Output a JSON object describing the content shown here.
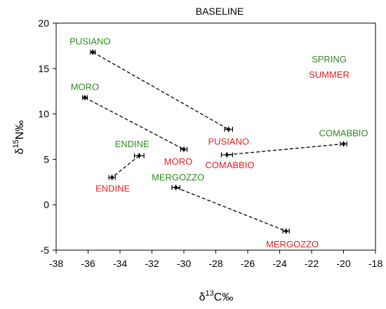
{
  "chart_data": {
    "type": "scatter",
    "title": "BASELINE",
    "xlabel": {
      "pre": "δ",
      "sup": "13",
      "post": "C‰"
    },
    "ylabel": {
      "pre": "δ",
      "sup": "15",
      "post": "N‰"
    },
    "xlim": [
      -38,
      -18
    ],
    "ylim": [
      -5,
      20
    ],
    "xticks": [
      -38,
      -36,
      -34,
      -32,
      -30,
      -28,
      -26,
      -24,
      -22,
      -20,
      -18
    ],
    "yticks": [
      -5,
      0,
      5,
      10,
      15,
      20
    ],
    "grid": false,
    "legend_position": "top-right",
    "series": [
      {
        "name": "SPRING",
        "color": "#2e8b1e"
      },
      {
        "name": "SUMMER",
        "color": "#e8201c"
      }
    ],
    "points": [
      {
        "lake": "PUSIANO",
        "season": "SPRING",
        "x": -35.7,
        "y": 16.8,
        "xerr": 0.15
      },
      {
        "lake": "PUSIANO",
        "season": "SUMMER",
        "x": -27.2,
        "y": 8.3,
        "xerr": 0.25
      },
      {
        "lake": "MORO",
        "season": "SPRING",
        "x": -36.2,
        "y": 11.8,
        "xerr": 0.15
      },
      {
        "lake": "MORO",
        "season": "SUMMER",
        "x": -30.0,
        "y": 6.1,
        "xerr": 0.2
      },
      {
        "lake": "ENDINE",
        "season": "SPRING",
        "x": -32.8,
        "y": 5.4,
        "xerr": 0.3
      },
      {
        "lake": "ENDINE",
        "season": "SUMMER",
        "x": -34.5,
        "y": 3.0,
        "xerr": 0.2
      },
      {
        "lake": "COMABBIO",
        "season": "SPRING",
        "x": -20.0,
        "y": 6.7,
        "xerr": 0.2
      },
      {
        "lake": "COMABBIO",
        "season": "SUMMER",
        "x": -27.3,
        "y": 5.5,
        "xerr": 0.35
      },
      {
        "lake": "MERGOZZO",
        "season": "SPRING",
        "x": -30.5,
        "y": 1.9,
        "xerr": 0.25
      },
      {
        "lake": "MERGOZZO",
        "season": "SUMMER",
        "x": -23.6,
        "y": -2.9,
        "xerr": 0.2
      }
    ],
    "connections": [
      [
        0,
        1
      ],
      [
        2,
        3
      ],
      [
        4,
        5
      ],
      [
        6,
        7
      ],
      [
        8,
        9
      ]
    ]
  }
}
